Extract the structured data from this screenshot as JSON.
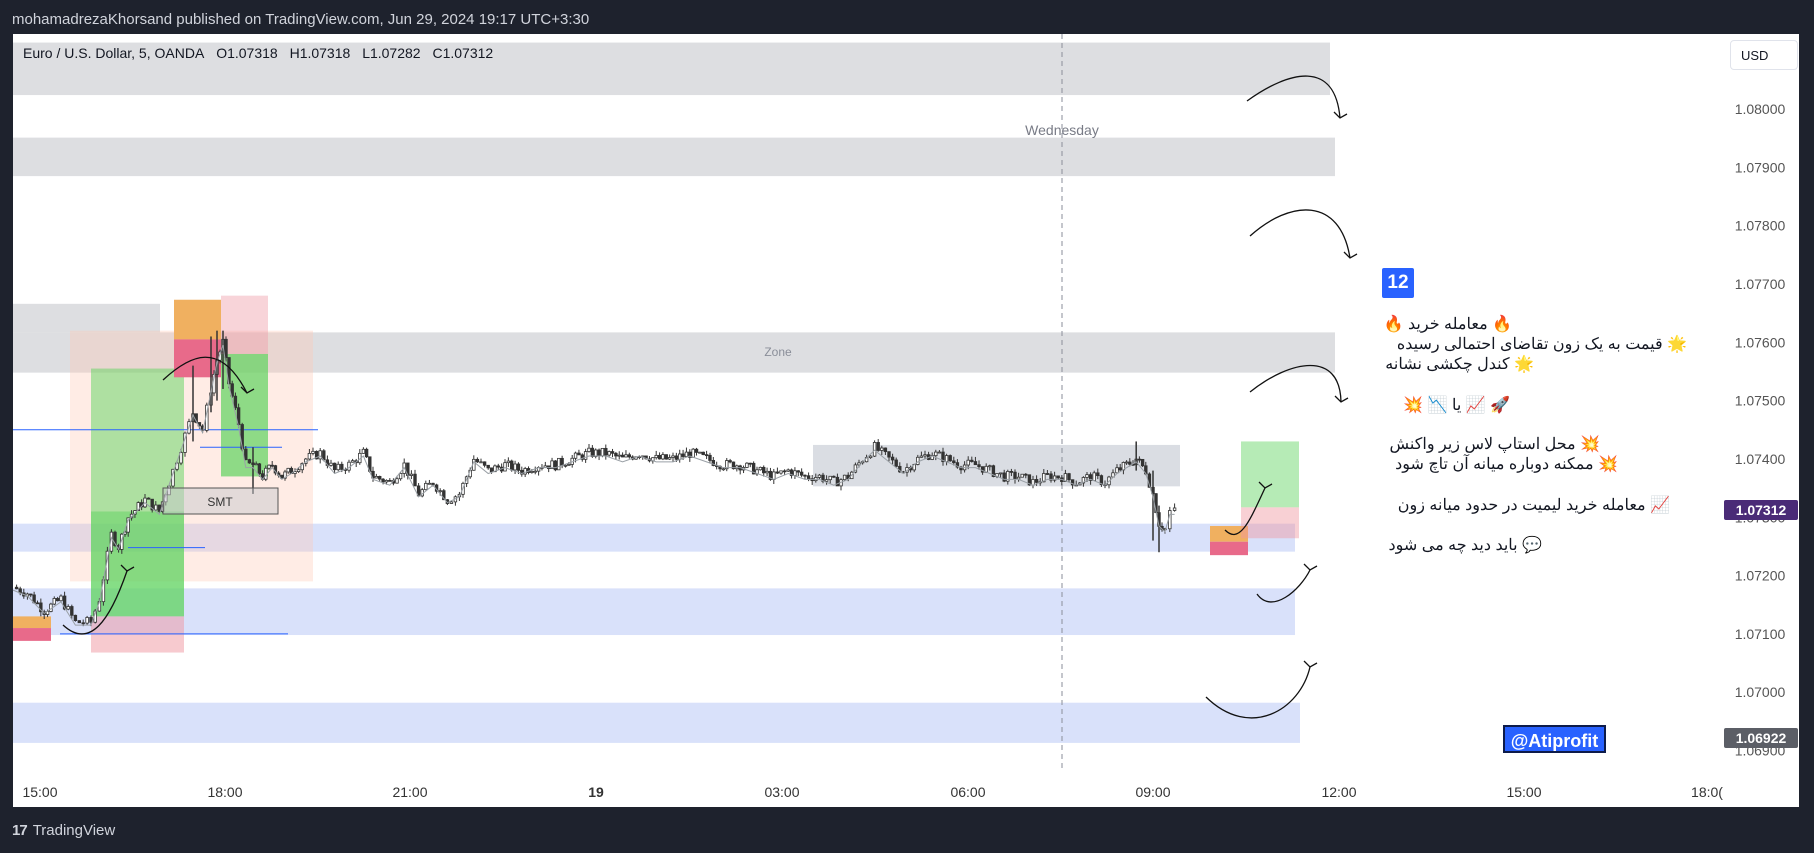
{
  "header": {
    "published": "mohamadrezaKhorsand published on TradingView.com, Jun 29, 2024 19:17 UTC+3:30"
  },
  "footer": {
    "logo_text": "TradingView",
    "logo_mark": "17"
  },
  "legend": {
    "symbol": "Euro / U.S. Dollar, 5, OANDA",
    "open": "O1.07318",
    "high": "H1.07318",
    "low": "L1.07282",
    "close": "C1.07312"
  },
  "currency_button": "USD",
  "session_label": "Wednesday",
  "zone_label": "Zone",
  "smt_label": "SMT",
  "notes": {
    "badge": "12",
    "line1": "🔥 معامله خرید 🔥",
    "line2": "🌟 قیمت به یک زون تقاضای احتمالی رسیده",
    "line3": "🌟 کندل چکشی نشانه",
    "line4": "🚀 📈 یا 📉 💥",
    "line5": "💥 محل استاپ لاس زیر واکنش",
    "line6": "💥 ممکنه دوباره میانه آن تاچ شود",
    "line7": "📈 معامله خرید لیمیت در حدود میانه زون",
    "line8": "💬 باید دید چه می شود"
  },
  "brand": "@Atiprofit",
  "chart_data": {
    "type": "candlestick",
    "symbol": "EURUSD",
    "timeframe": "5",
    "x_ticks": [
      "15:00",
      "18:00",
      "21:00",
      "19",
      "03:00",
      "06:00",
      "09:00",
      "12:00",
      "15:00",
      "18:0("
    ],
    "y_ticks": [
      "1.08000",
      "1.07900",
      "1.07800",
      "1.07700",
      "1.07600",
      "1.07500",
      "1.07400",
      "1.07300",
      "1.07200",
      "1.07100",
      "1.07000",
      "1.06900"
    ],
    "ylim": [
      1.0687,
      1.08115
    ],
    "current_price": "1.07312",
    "low_marker": "1.06922",
    "colors": {
      "supply": "#d7d8dc",
      "demand": "#d5defa",
      "current_tag": "#4a2b77",
      "low_tag": "#5b5e66"
    },
    "price_path": [
      [
        0,
        1.0718
      ],
      [
        12,
        1.0717
      ],
      [
        26,
        1.0714
      ],
      [
        40,
        1.0716
      ],
      [
        52,
        1.0712
      ],
      [
        65,
        1.0712
      ],
      [
        72,
        1.0716
      ],
      [
        82,
        1.0727
      ],
      [
        88,
        1.0725
      ],
      [
        96,
        1.073
      ],
      [
        110,
        1.0733
      ],
      [
        122,
        1.0731
      ],
      [
        130,
        1.0736
      ],
      [
        140,
        1.0742
      ],
      [
        150,
        1.0748
      ],
      [
        158,
        1.0745
      ],
      [
        165,
        1.0752
      ],
      [
        170,
        1.0757
      ],
      [
        175,
        1.076
      ],
      [
        180,
        1.0753
      ],
      [
        188,
        1.0746
      ],
      [
        194,
        1.0739
      ],
      [
        200,
        1.0739
      ],
      [
        208,
        1.0737
      ],
      [
        216,
        1.0739
      ],
      [
        224,
        1.0737
      ],
      [
        232,
        1.0738
      ],
      [
        244,
        1.074
      ],
      [
        256,
        1.0741
      ],
      [
        268,
        1.0738
      ],
      [
        280,
        1.0739
      ],
      [
        292,
        1.0741
      ],
      [
        300,
        1.0737
      ],
      [
        314,
        1.0736
      ],
      [
        326,
        1.0739
      ],
      [
        338,
        1.0734
      ],
      [
        350,
        1.0736
      ],
      [
        362,
        1.0733
      ],
      [
        372,
        1.0734
      ],
      [
        384,
        1.074
      ],
      [
        396,
        1.0738
      ],
      [
        410,
        1.0739
      ],
      [
        424,
        1.0738
      ],
      [
        438,
        1.0739
      ],
      [
        452,
        1.0739
      ],
      [
        466,
        1.074
      ],
      [
        480,
        1.0741
      ],
      [
        494,
        1.0741
      ],
      [
        508,
        1.074
      ],
      [
        522,
        1.0741
      ],
      [
        536,
        1.074
      ],
      [
        550,
        1.074
      ],
      [
        564,
        1.0741
      ],
      [
        578,
        1.074
      ],
      [
        592,
        1.0739
      ],
      [
        606,
        1.0739
      ],
      [
        620,
        1.0738
      ],
      [
        634,
        1.0737
      ],
      [
        646,
        1.0738
      ],
      [
        660,
        1.0737
      ],
      [
        672,
        1.0737
      ],
      [
        684,
        1.0736
      ],
      [
        696,
        1.0737
      ],
      [
        708,
        1.074
      ],
      [
        718,
        1.0742
      ],
      [
        730,
        1.074
      ],
      [
        742,
        1.0738
      ],
      [
        754,
        1.074
      ],
      [
        766,
        1.0741
      ],
      [
        778,
        1.074
      ],
      [
        790,
        1.0739
      ],
      [
        802,
        1.0739
      ],
      [
        814,
        1.0738
      ],
      [
        826,
        1.0737
      ],
      [
        838,
        1.0737
      ],
      [
        850,
        1.0736
      ],
      [
        862,
        1.0737
      ],
      [
        874,
        1.0737
      ],
      [
        886,
        1.0736
      ],
      [
        898,
        1.0737
      ],
      [
        910,
        1.0736
      ],
      [
        920,
        1.0738
      ],
      [
        928,
        1.0739
      ],
      [
        936,
        1.074
      ],
      [
        944,
        1.0738
      ],
      [
        950,
        1.0734
      ],
      [
        955,
        1.0729
      ],
      [
        960,
        1.0728
      ],
      [
        964,
        1.0731
      ],
      [
        968,
        1.0731
      ]
    ],
    "swing_ranges": [
      [
        150,
        1.0743,
        1.0756
      ],
      [
        165,
        1.0748,
        1.0761
      ],
      [
        170,
        1.075,
        1.0762
      ],
      [
        175,
        1.0752,
        1.0762
      ],
      [
        200,
        1.0734,
        1.0742
      ],
      [
        936,
        1.0738,
        1.0743
      ],
      [
        950,
        1.0726,
        1.0738
      ],
      [
        955,
        1.0724,
        1.0732
      ]
    ]
  }
}
